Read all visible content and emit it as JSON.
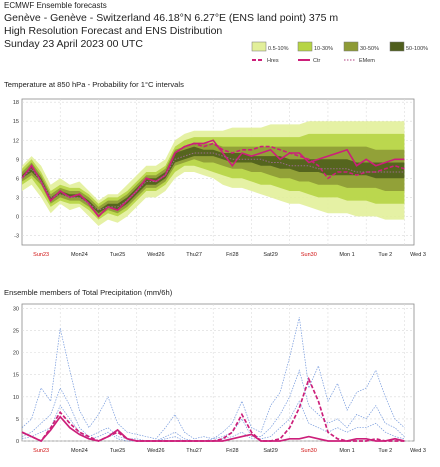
{
  "header": {
    "small": "ECMWF Ensemble forecasts",
    "line1": "Genève - Genève - Switzerland 46.18°N 6.27°E (ENS land point) 375 m",
    "line2": "High Resolution Forecast and ENS Distribution",
    "line3": "Sunday 23 April 2023 00 UTC"
  },
  "legend": {
    "boxes": [
      {
        "label": "0.5-10%",
        "color": "#e2ef9a"
      },
      {
        "label": "10-30%",
        "color": "#b6d445"
      },
      {
        "label": "30-50%",
        "color": "#8e9b36"
      },
      {
        "label": "50-100%",
        "color": "#4f5e1c"
      }
    ],
    "lines": [
      {
        "label": "Hres",
        "color": "#cc1f7a",
        "dash": "dash"
      },
      {
        "label": "Ctr",
        "color": "#cc1f7a",
        "dash": "solid"
      },
      {
        "label": "EMem",
        "color": "#d8a0c0",
        "dash": "dot"
      }
    ]
  },
  "x_ticks": [
    {
      "label": "Sun23",
      "color": "#d01010"
    },
    {
      "label": "Mon24",
      "color": "#222222"
    },
    {
      "label": "Tue25",
      "color": "#222222"
    },
    {
      "label": "Wed26",
      "color": "#222222"
    },
    {
      "label": "Thu27",
      "color": "#222222"
    },
    {
      "label": "Fri28",
      "color": "#222222"
    },
    {
      "label": "Sat29",
      "color": "#222222"
    },
    {
      "label": "Sun30",
      "color": "#d01010"
    },
    {
      "label": "Mon 1",
      "color": "#222222"
    },
    {
      "label": "Tue 2",
      "color": "#222222"
    },
    {
      "label": "Wed 3",
      "color": "#222222"
    }
  ],
  "chart_data": [
    {
      "type": "area",
      "title": "Temperature at 850 hPa - Probability for 1°C intervals",
      "x_unit": "forecast hours from Sunday 23 April 2023 00 UTC",
      "ylim": [
        -4.5,
        18.5
      ],
      "yticks": [
        -3,
        0,
        3,
        6,
        9,
        12,
        15,
        18
      ],
      "xlim": [
        0,
        246
      ],
      "grid": true,
      "x": [
        0,
        6,
        12,
        18,
        24,
        30,
        36,
        42,
        48,
        54,
        60,
        66,
        72,
        78,
        84,
        90,
        96,
        102,
        108,
        114,
        120,
        126,
        132,
        138,
        144,
        150,
        156,
        162,
        168,
        174,
        180,
        186,
        192,
        198,
        204,
        210,
        216,
        222,
        228,
        234,
        240
      ],
      "series": [
        {
          "name": "Ctr",
          "values": [
            6,
            8,
            5.5,
            2.5,
            4,
            3,
            3.5,
            2,
            0,
            1.5,
            1,
            2.5,
            4,
            6,
            5.5,
            6.5,
            10,
            11,
            11.5,
            11.5,
            12,
            10,
            8,
            10,
            9.5,
            10,
            10.5,
            9,
            10,
            10,
            8.5,
            9,
            9.5,
            10,
            10.5,
            8,
            9,
            8,
            8.5,
            9,
            9
          ]
        },
        {
          "name": "Hres",
          "values": [
            6,
            8,
            5.5,
            2.5,
            4,
            3,
            3.5,
            2,
            0,
            1.5,
            1,
            2.5,
            4,
            6,
            5.5,
            6.5,
            10,
            11,
            11.5,
            11,
            11.5,
            10.5,
            10,
            10.5,
            10.5,
            11,
            11,
            10.5,
            10,
            9.5,
            9,
            8,
            6,
            7,
            7,
            6.5,
            7,
            7,
            7.5,
            8,
            7.5
          ]
        },
        {
          "name": "EMem",
          "values": [
            6,
            7.5,
            5.5,
            3,
            3.5,
            3,
            3,
            2,
            1,
            1.5,
            1.5,
            2.5,
            4,
            5.5,
            5.5,
            6.5,
            9,
            9.5,
            10,
            10,
            10,
            9.5,
            9,
            9,
            9,
            9,
            8.5,
            8.5,
            8,
            8,
            8,
            7.5,
            7.5,
            7.5,
            7.5,
            7,
            7,
            7,
            7,
            7,
            7
          ]
        }
      ],
      "probability_bands": [
        {
          "label": "0.5-10%",
          "low": [
            4,
            5,
            3,
            0.5,
            2,
            1,
            1.5,
            0,
            -1.5,
            -0.5,
            -1,
            0,
            1.5,
            3,
            3,
            4,
            6,
            7,
            7,
            6.5,
            6,
            5,
            4.5,
            4.5,
            4,
            3.5,
            3,
            2.5,
            2,
            2,
            1.5,
            1,
            0.5,
            0.5,
            0.5,
            0,
            0,
            0,
            -0.5,
            -0.5,
            -0.5
          ],
          "high": [
            8,
            9.5,
            8,
            5,
            6,
            5,
            5.5,
            4,
            2.5,
            3.5,
            3.5,
            5,
            6.5,
            8,
            8,
            9,
            12,
            13,
            13.5,
            13.5,
            13.5,
            13.5,
            14,
            14,
            14,
            14,
            14.5,
            14.5,
            14.5,
            14.5,
            15,
            15,
            15,
            15,
            15,
            15,
            15,
            15,
            15,
            15,
            15
          ]
        },
        {
          "label": "10-30%",
          "low": [
            5,
            6,
            4,
            1.5,
            2.5,
            2,
            2,
            1,
            -0.5,
            0.5,
            0,
            1,
            2.5,
            4,
            4,
            5,
            7,
            8,
            8,
            7.5,
            7,
            6.5,
            6,
            6,
            5.5,
            5,
            5,
            4.5,
            4,
            4,
            3.5,
            3,
            3,
            3,
            2.5,
            2.5,
            2.5,
            2,
            2,
            2,
            2
          ],
          "high": [
            7.5,
            9,
            7,
            4,
            5,
            4.5,
            4.5,
            3.5,
            2,
            3,
            3,
            4,
            5.5,
            7,
            7,
            8,
            11,
            12,
            12.5,
            12.5,
            12.5,
            12.5,
            12.5,
            12.5,
            12.5,
            12.5,
            12.5,
            12.5,
            12.5,
            12.5,
            13,
            13,
            13,
            13,
            13,
            13,
            13,
            13,
            13,
            13,
            13
          ]
        },
        {
          "label": "30-50%",
          "low": [
            5.5,
            6.5,
            5,
            2,
            3,
            2.5,
            2.5,
            1.5,
            0,
            1,
            0.5,
            1.5,
            3,
            4.5,
            4.5,
            5.5,
            8,
            8.5,
            9,
            8.5,
            8.5,
            8,
            7.5,
            7.5,
            7,
            7,
            6.5,
            6,
            6,
            5.5,
            5.5,
            5,
            5,
            5,
            4.5,
            4.5,
            4.5,
            4.5,
            4,
            4,
            4
          ],
          "high": [
            7,
            8.5,
            6.5,
            3.5,
            4.5,
            4,
            4,
            3,
            1.5,
            2.5,
            2.5,
            3.5,
            5,
            6.5,
            6.5,
            7.5,
            10.5,
            11,
            11.5,
            11.5,
            11.5,
            11,
            11,
            11,
            11,
            11,
            11,
            11,
            11,
            11,
            11,
            11,
            11,
            11,
            11,
            11,
            11,
            10.5,
            10.5,
            10.5,
            10.5
          ]
        },
        {
          "label": "50-100%",
          "low": [
            6,
            7,
            5.5,
            2.5,
            3.5,
            3,
            3,
            2,
            0.5,
            1.5,
            1,
            2,
            3.5,
            5,
            5,
            6,
            8.5,
            9,
            9.5,
            9.5,
            9.5,
            9,
            8.5,
            8.5,
            8.5,
            8,
            8,
            7.5,
            7.5,
            7,
            7,
            7,
            6.5,
            6.5,
            6.5,
            6.5,
            6.5,
            6,
            6,
            6,
            6
          ],
          "high": [
            6.5,
            8,
            6,
            3,
            4,
            3.5,
            3.5,
            2.5,
            1,
            2,
            2,
            3,
            4.5,
            6,
            6,
            7,
            10,
            10.5,
            11,
            10.5,
            10.5,
            10,
            10,
            10,
            9.5,
            9.5,
            9.5,
            9.5,
            9,
            9,
            9,
            9,
            9,
            9,
            9,
            8.5,
            8.5,
            8.5,
            8.5,
            8.5,
            8.5
          ]
        }
      ]
    },
    {
      "type": "line",
      "title": "Ensemble members of Total Precipitation (mm/6h)",
      "x_unit": "forecast hours from Sunday 23 April 2023 00 UTC",
      "ylim": [
        0,
        31
      ],
      "yticks": [
        0,
        5,
        10,
        15,
        20,
        25,
        30
      ],
      "xlim": [
        0,
        246
      ],
      "grid": true,
      "x": [
        0,
        6,
        12,
        18,
        24,
        30,
        36,
        42,
        48,
        54,
        60,
        66,
        72,
        78,
        84,
        90,
        96,
        102,
        108,
        114,
        120,
        126,
        132,
        138,
        144,
        150,
        156,
        162,
        168,
        174,
        180,
        186,
        192,
        198,
        204,
        210,
        216,
        222,
        228,
        234,
        240
      ],
      "series": [
        {
          "name": "Hres",
          "values": [
            2,
            1,
            0,
            3,
            6.5,
            4,
            2,
            1,
            0,
            1,
            2,
            0.5,
            0,
            0,
            0,
            0,
            0,
            0,
            0,
            0,
            0,
            0.5,
            2,
            6,
            2,
            0,
            0,
            0.5,
            3,
            7.5,
            14,
            9,
            2,
            0.5,
            0,
            0,
            0,
            0.5,
            0,
            0,
            0
          ]
        },
        {
          "name": "Ctr",
          "values": [
            2,
            1,
            0,
            2.5,
            5.5,
            3,
            1.5,
            0.5,
            0,
            1,
            2.5,
            0.5,
            0,
            0,
            0,
            0,
            0,
            0,
            0,
            0,
            0,
            0,
            0.5,
            1,
            1.5,
            0,
            0,
            0,
            0.5,
            0.5,
            1,
            0.5,
            0,
            0,
            0,
            0.5,
            0.5,
            0,
            0,
            0.5,
            0
          ]
        },
        {
          "name": "EMem",
          "values": [
            3,
            5,
            12,
            9,
            25.5,
            16,
            7,
            3,
            6,
            10,
            4,
            2,
            1.5,
            1,
            0.5,
            3,
            6,
            2,
            0.5,
            1,
            0.5,
            2,
            4,
            9,
            3,
            2,
            8,
            11,
            19,
            28,
            12,
            17,
            9,
            13,
            7,
            11,
            12,
            16,
            10,
            5,
            3
          ]
        },
        {
          "name": "EMem",
          "values": [
            1,
            2,
            4,
            6,
            12,
            8,
            3,
            1,
            2,
            3,
            1,
            0.5,
            0.5,
            0,
            0,
            1,
            2,
            0.5,
            0,
            0,
            0.5,
            1,
            2,
            5,
            1,
            1,
            3,
            6,
            10,
            16,
            8,
            6,
            4,
            5,
            3,
            6,
            5,
            8,
            4,
            3,
            1
          ]
        },
        {
          "name": "EMem",
          "values": [
            0.5,
            1,
            2,
            3,
            8,
            5,
            2,
            0.5,
            1,
            2,
            0.5,
            0,
            0,
            0,
            0,
            0.5,
            1,
            0,
            0,
            0,
            0,
            0.5,
            1,
            2,
            0.5,
            0.5,
            1,
            3,
            5,
            9,
            4,
            3,
            2,
            3,
            2,
            3,
            3,
            4,
            2,
            1,
            0.5
          ]
        }
      ]
    }
  ]
}
